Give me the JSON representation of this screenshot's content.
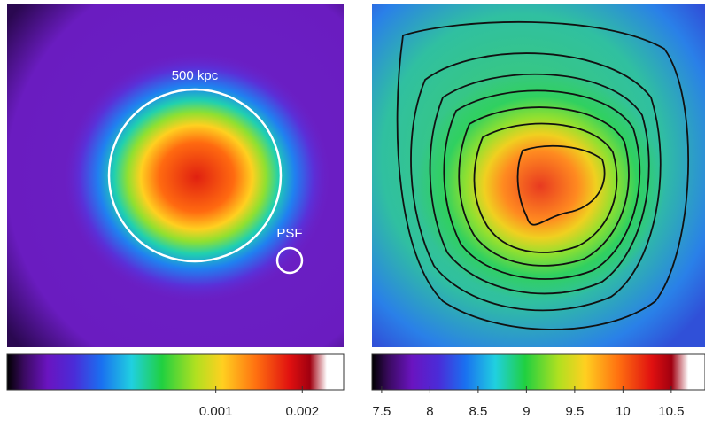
{
  "chart_data": [
    {
      "type": "heatmap",
      "annotations": [
        "500 kpc",
        "PSF"
      ],
      "clim": [
        0,
        0.0026
      ],
      "scale": "sqrt",
      "cticks": [
        0.001,
        0.002
      ]
    },
    {
      "type": "heatmap",
      "clim": [
        7.4,
        10.85
      ],
      "scale": "linear",
      "cticks": [
        7.5,
        8,
        8.5,
        9,
        9.5,
        10,
        10.5
      ]
    }
  ]
}
